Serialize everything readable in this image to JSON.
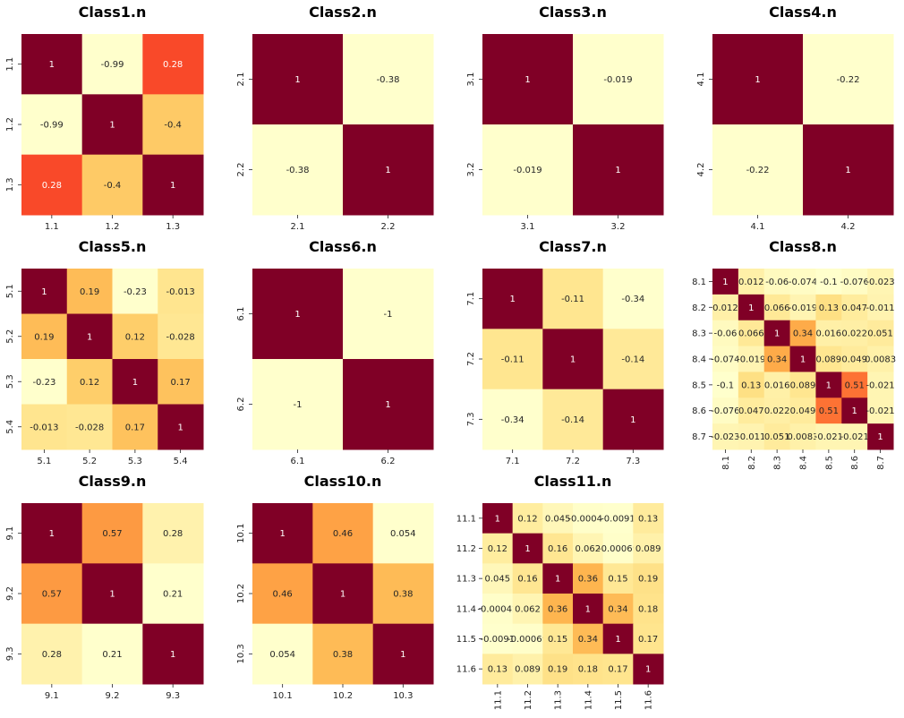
{
  "chart_data": [
    {
      "type": "heatmap",
      "title": "Class1.n",
      "labels": [
        "1.1",
        "1.2",
        "1.3"
      ],
      "values": [
        [
          1,
          -0.99,
          0.28
        ],
        [
          -0.99,
          1,
          -0.4
        ],
        [
          0.28,
          -0.4,
          1
        ]
      ],
      "cell_labels": [
        [
          "1",
          "-0.99",
          "0.28"
        ],
        [
          "-0.99",
          "1",
          "-0.4"
        ],
        [
          "0.28",
          "-0.4",
          "1"
        ]
      ],
      "colormap": "YlOrRd",
      "colorbar": false
    },
    {
      "type": "heatmap",
      "title": "Class2.n",
      "labels": [
        "2.1",
        "2.2"
      ],
      "values": [
        [
          1,
          -0.38
        ],
        [
          -0.38,
          1
        ]
      ],
      "cell_labels": [
        [
          "1",
          "-0.38"
        ],
        [
          "-0.38",
          "1"
        ]
      ],
      "colormap": "YlOrRd",
      "colorbar": false
    },
    {
      "type": "heatmap",
      "title": "Class3.n",
      "labels": [
        "3.1",
        "3.2"
      ],
      "values": [
        [
          1,
          -0.019
        ],
        [
          -0.019,
          1
        ]
      ],
      "cell_labels": [
        [
          "1",
          "-0.019"
        ],
        [
          "-0.019",
          "1"
        ]
      ],
      "colormap": "YlOrRd",
      "colorbar": false
    },
    {
      "type": "heatmap",
      "title": "Class4.n",
      "labels": [
        "4.1",
        "4.2"
      ],
      "values": [
        [
          1,
          -0.22
        ],
        [
          -0.22,
          1
        ]
      ],
      "cell_labels": [
        [
          "1",
          "-0.22"
        ],
        [
          "-0.22",
          "1"
        ]
      ],
      "colormap": "YlOrRd",
      "colorbar": false
    },
    {
      "type": "heatmap",
      "title": "Class5.n",
      "labels": [
        "5.1",
        "5.2",
        "5.3",
        "5.4"
      ],
      "values": [
        [
          1,
          0.19,
          -0.23,
          -0.013
        ],
        [
          0.19,
          1,
          0.12,
          -0.028
        ],
        [
          -0.23,
          0.12,
          1,
          0.17
        ],
        [
          -0.013,
          -0.028,
          0.17,
          1
        ]
      ],
      "cell_labels": [
        [
          "1",
          "0.19",
          "-0.23",
          "-0.013"
        ],
        [
          "0.19",
          "1",
          "0.12",
          "-0.028"
        ],
        [
          "-0.23",
          "0.12",
          "1",
          "0.17"
        ],
        [
          "-0.013",
          "-0.028",
          "0.17",
          "1"
        ]
      ],
      "colormap": "YlOrRd",
      "colorbar": false
    },
    {
      "type": "heatmap",
      "title": "Class6.n",
      "labels": [
        "6.1",
        "6.2"
      ],
      "values": [
        [
          1,
          -1
        ],
        [
          -1,
          1
        ]
      ],
      "cell_labels": [
        [
          "1",
          "-1"
        ],
        [
          "-1",
          "1"
        ]
      ],
      "colormap": "YlOrRd",
      "colorbar": false
    },
    {
      "type": "heatmap",
      "title": "Class7.n",
      "labels": [
        "7.1",
        "7.2",
        "7.3"
      ],
      "values": [
        [
          1,
          -0.11,
          -0.34
        ],
        [
          -0.11,
          1,
          -0.14
        ],
        [
          -0.34,
          -0.14,
          1
        ]
      ],
      "cell_labels": [
        [
          "1",
          "-0.11",
          "-0.34"
        ],
        [
          "-0.11",
          "1",
          "-0.14"
        ],
        [
          "-0.34",
          "-0.14",
          "1"
        ]
      ],
      "colormap": "YlOrRd",
      "colorbar": false
    },
    {
      "type": "heatmap",
      "title": "Class8.n",
      "labels": [
        "8.1",
        "8.2",
        "8.3",
        "8.4",
        "8.5",
        "8.6",
        "8.7"
      ],
      "values": [
        [
          1,
          0.012,
          -0.06,
          -0.074,
          -0.1,
          -0.076,
          -0.023
        ],
        [
          0.012,
          1,
          0.066,
          -0.019,
          0.13,
          0.047,
          -0.011
        ],
        [
          -0.06,
          0.066,
          1,
          0.34,
          0.016,
          0.022,
          0.051
        ],
        [
          -0.074,
          -0.019,
          0.34,
          1,
          0.089,
          0.049,
          0.0083
        ],
        [
          -0.1,
          0.13,
          0.016,
          0.089,
          1,
          0.51,
          -0.021
        ],
        [
          -0.076,
          0.047,
          0.022,
          0.049,
          0.51,
          1,
          -0.021
        ],
        [
          -0.023,
          -0.011,
          0.051,
          0.0083,
          -0.021,
          -0.021,
          1
        ]
      ],
      "cell_labels": [
        [
          "1",
          "0.012",
          "-0.06",
          "-0.074",
          "-0.1",
          "-0.076",
          "-0.023"
        ],
        [
          "0.012",
          "1",
          "0.066",
          "-0.019",
          "0.13",
          "0.047",
          "-0.011"
        ],
        [
          "-0.06",
          "0.066",
          "1",
          "0.34",
          "0.016",
          "0.022",
          "0.051"
        ],
        [
          "-0.074",
          "-0.019",
          "0.34",
          "1",
          "0.089",
          "0.049",
          "0.0083"
        ],
        [
          "-0.1",
          "0.13",
          "0.016",
          "0.089",
          "1",
          "0.51",
          "-0.021"
        ],
        [
          "-0.076",
          "0.047",
          "0.022",
          "0.049",
          "0.51",
          "1",
          "-0.021"
        ],
        [
          "-0.023",
          "-0.011",
          "0.051",
          "0.0083",
          "-0.021",
          "-0.021",
          "1"
        ]
      ],
      "colormap": "YlOrRd",
      "colorbar": false
    },
    {
      "type": "heatmap",
      "title": "Class9.n",
      "labels": [
        "9.1",
        "9.2",
        "9.3"
      ],
      "values": [
        [
          1,
          0.57,
          0.28
        ],
        [
          0.57,
          1,
          0.21
        ],
        [
          0.28,
          0.21,
          1
        ]
      ],
      "cell_labels": [
        [
          "1",
          "0.57",
          "0.28"
        ],
        [
          "0.57",
          "1",
          "0.21"
        ],
        [
          "0.28",
          "0.21",
          "1"
        ]
      ],
      "colormap": "YlOrRd",
      "colorbar": false
    },
    {
      "type": "heatmap",
      "title": "Class10.n",
      "labels": [
        "10.1",
        "10.2",
        "10.3"
      ],
      "values": [
        [
          1,
          0.46,
          0.054
        ],
        [
          0.46,
          1,
          0.38
        ],
        [
          0.054,
          0.38,
          1
        ]
      ],
      "cell_labels": [
        [
          "1",
          "0.46",
          "0.054"
        ],
        [
          "0.46",
          "1",
          "0.38"
        ],
        [
          "0.054",
          "0.38",
          "1"
        ]
      ],
      "colormap": "YlOrRd",
      "colorbar": false
    },
    {
      "type": "heatmap",
      "title": "Class11.n",
      "labels": [
        "11.1",
        "11.2",
        "11.3",
        "11.4",
        "11.5",
        "11.6"
      ],
      "values": [
        [
          1,
          0.12,
          0.045,
          -0.00042,
          -0.0091,
          0.13
        ],
        [
          0.12,
          1,
          0.16,
          0.062,
          -0.00069,
          0.089
        ],
        [
          0.045,
          0.16,
          1,
          0.36,
          0.15,
          0.19
        ],
        [
          -0.00042,
          0.062,
          0.36,
          1,
          0.34,
          0.18
        ],
        [
          -0.0091,
          -0.00069,
          0.15,
          0.34,
          1,
          0.17
        ],
        [
          0.13,
          0.089,
          0.19,
          0.18,
          0.17,
          1
        ]
      ],
      "cell_labels": [
        [
          "1",
          "0.12",
          "0.045",
          "-0.00042",
          "-0.0091",
          "0.13"
        ],
        [
          "0.12",
          "1",
          "0.16",
          "0.062",
          "-0.00069",
          "0.089"
        ],
        [
          "0.045",
          "0.16",
          "1",
          "0.36",
          "0.15",
          "0.19"
        ],
        [
          "-0.00042",
          "0.062",
          "0.36",
          "1",
          "0.34",
          "0.18"
        ],
        [
          "-0.0091",
          "-0.00069",
          "0.15",
          "0.34",
          "1",
          "0.17"
        ],
        [
          "0.13",
          "0.089",
          "0.19",
          "0.18",
          "0.17",
          "1"
        ]
      ],
      "colormap": "YlOrRd",
      "colorbar": false
    }
  ]
}
